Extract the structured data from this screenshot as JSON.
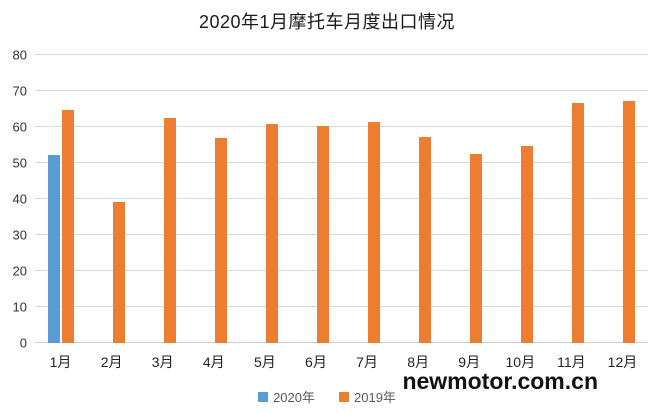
{
  "watermark": "newmotor.com.cn",
  "colors": {
    "series_2020": "#5B9BD5",
    "series_2019": "#ED7D31",
    "gridline": "#d9d9d9",
    "axis_line": "#c5cdd6",
    "legend_text": "#595959",
    "watermark_text": "#111111",
    "background": "#ffffff"
  },
  "chart_data": {
    "type": "bar",
    "title": "2020年1月摩托车月度出口情况",
    "categories": [
      "1月",
      "2月",
      "3月",
      "4月",
      "5月",
      "6月",
      "7月",
      "8月",
      "9月",
      "10月",
      "11月",
      "12月"
    ],
    "series": [
      {
        "name": "2020年",
        "color": "#5B9BD5",
        "values": [
          52.3,
          null,
          null,
          null,
          null,
          null,
          null,
          null,
          null,
          null,
          null,
          null
        ]
      },
      {
        "name": "2019年",
        "color": "#ED7D31",
        "values": [
          64.6,
          39.3,
          62.4,
          56.9,
          60.9,
          60.2,
          61.4,
          57.2,
          52.6,
          54.6,
          66.8,
          67.2
        ]
      }
    ],
    "xlabel": "",
    "ylabel": "",
    "ylim": [
      0,
      80
    ],
    "yticks": [
      0,
      10,
      20,
      30,
      40,
      50,
      60,
      70,
      80
    ],
    "grid": true,
    "legend_position": "bottom"
  }
}
